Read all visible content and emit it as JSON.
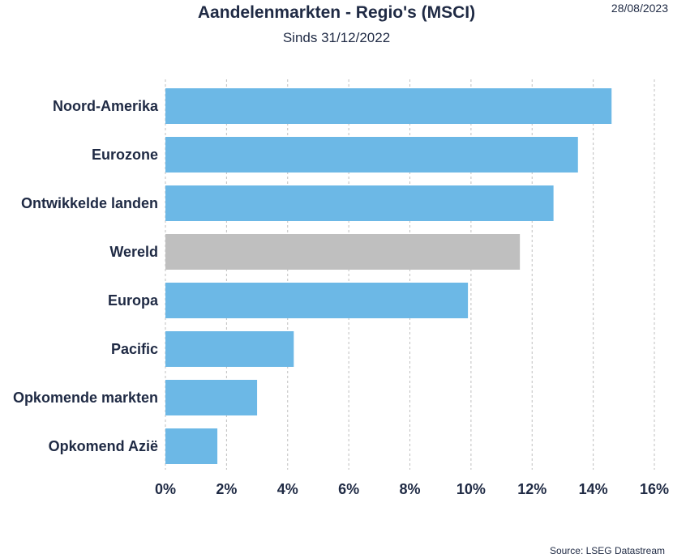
{
  "header": {
    "title": "Aandelenmarkten - Regio's (MSCI)",
    "subtitle": "Sinds 31/12/2022",
    "date": "28/08/2023"
  },
  "footer": {
    "source": "Source: LSEG Datastream"
  },
  "colors": {
    "bar": "#6cb8e6",
    "highlight": "#bfbfbf",
    "grid": "#bfbfbf",
    "text": "#1f2a44"
  },
  "chart_data": {
    "type": "bar",
    "orientation": "horizontal",
    "title": "Aandelenmarkten - Regio's (MSCI)",
    "subtitle": "Sinds 31/12/2022",
    "xlabel": "",
    "ylabel": "",
    "categories": [
      "Noord-Amerika",
      "Eurozone",
      "Ontwikkelde landen",
      "Wereld",
      "Europa",
      "Pacific",
      "Opkomende markten",
      "Opkomend Azië"
    ],
    "values": [
      14.6,
      13.5,
      12.7,
      11.6,
      9.9,
      4.2,
      3.0,
      1.7
    ],
    "highlight_category": "Wereld",
    "xlim": [
      0,
      16
    ],
    "xticks": [
      0,
      2,
      4,
      6,
      8,
      10,
      12,
      14,
      16
    ],
    "xtick_labels": [
      "0%",
      "2%",
      "4%",
      "6%",
      "8%",
      "10%",
      "12%",
      "14%",
      "16%"
    ],
    "grid": "vertical dashed",
    "legend": "none"
  }
}
